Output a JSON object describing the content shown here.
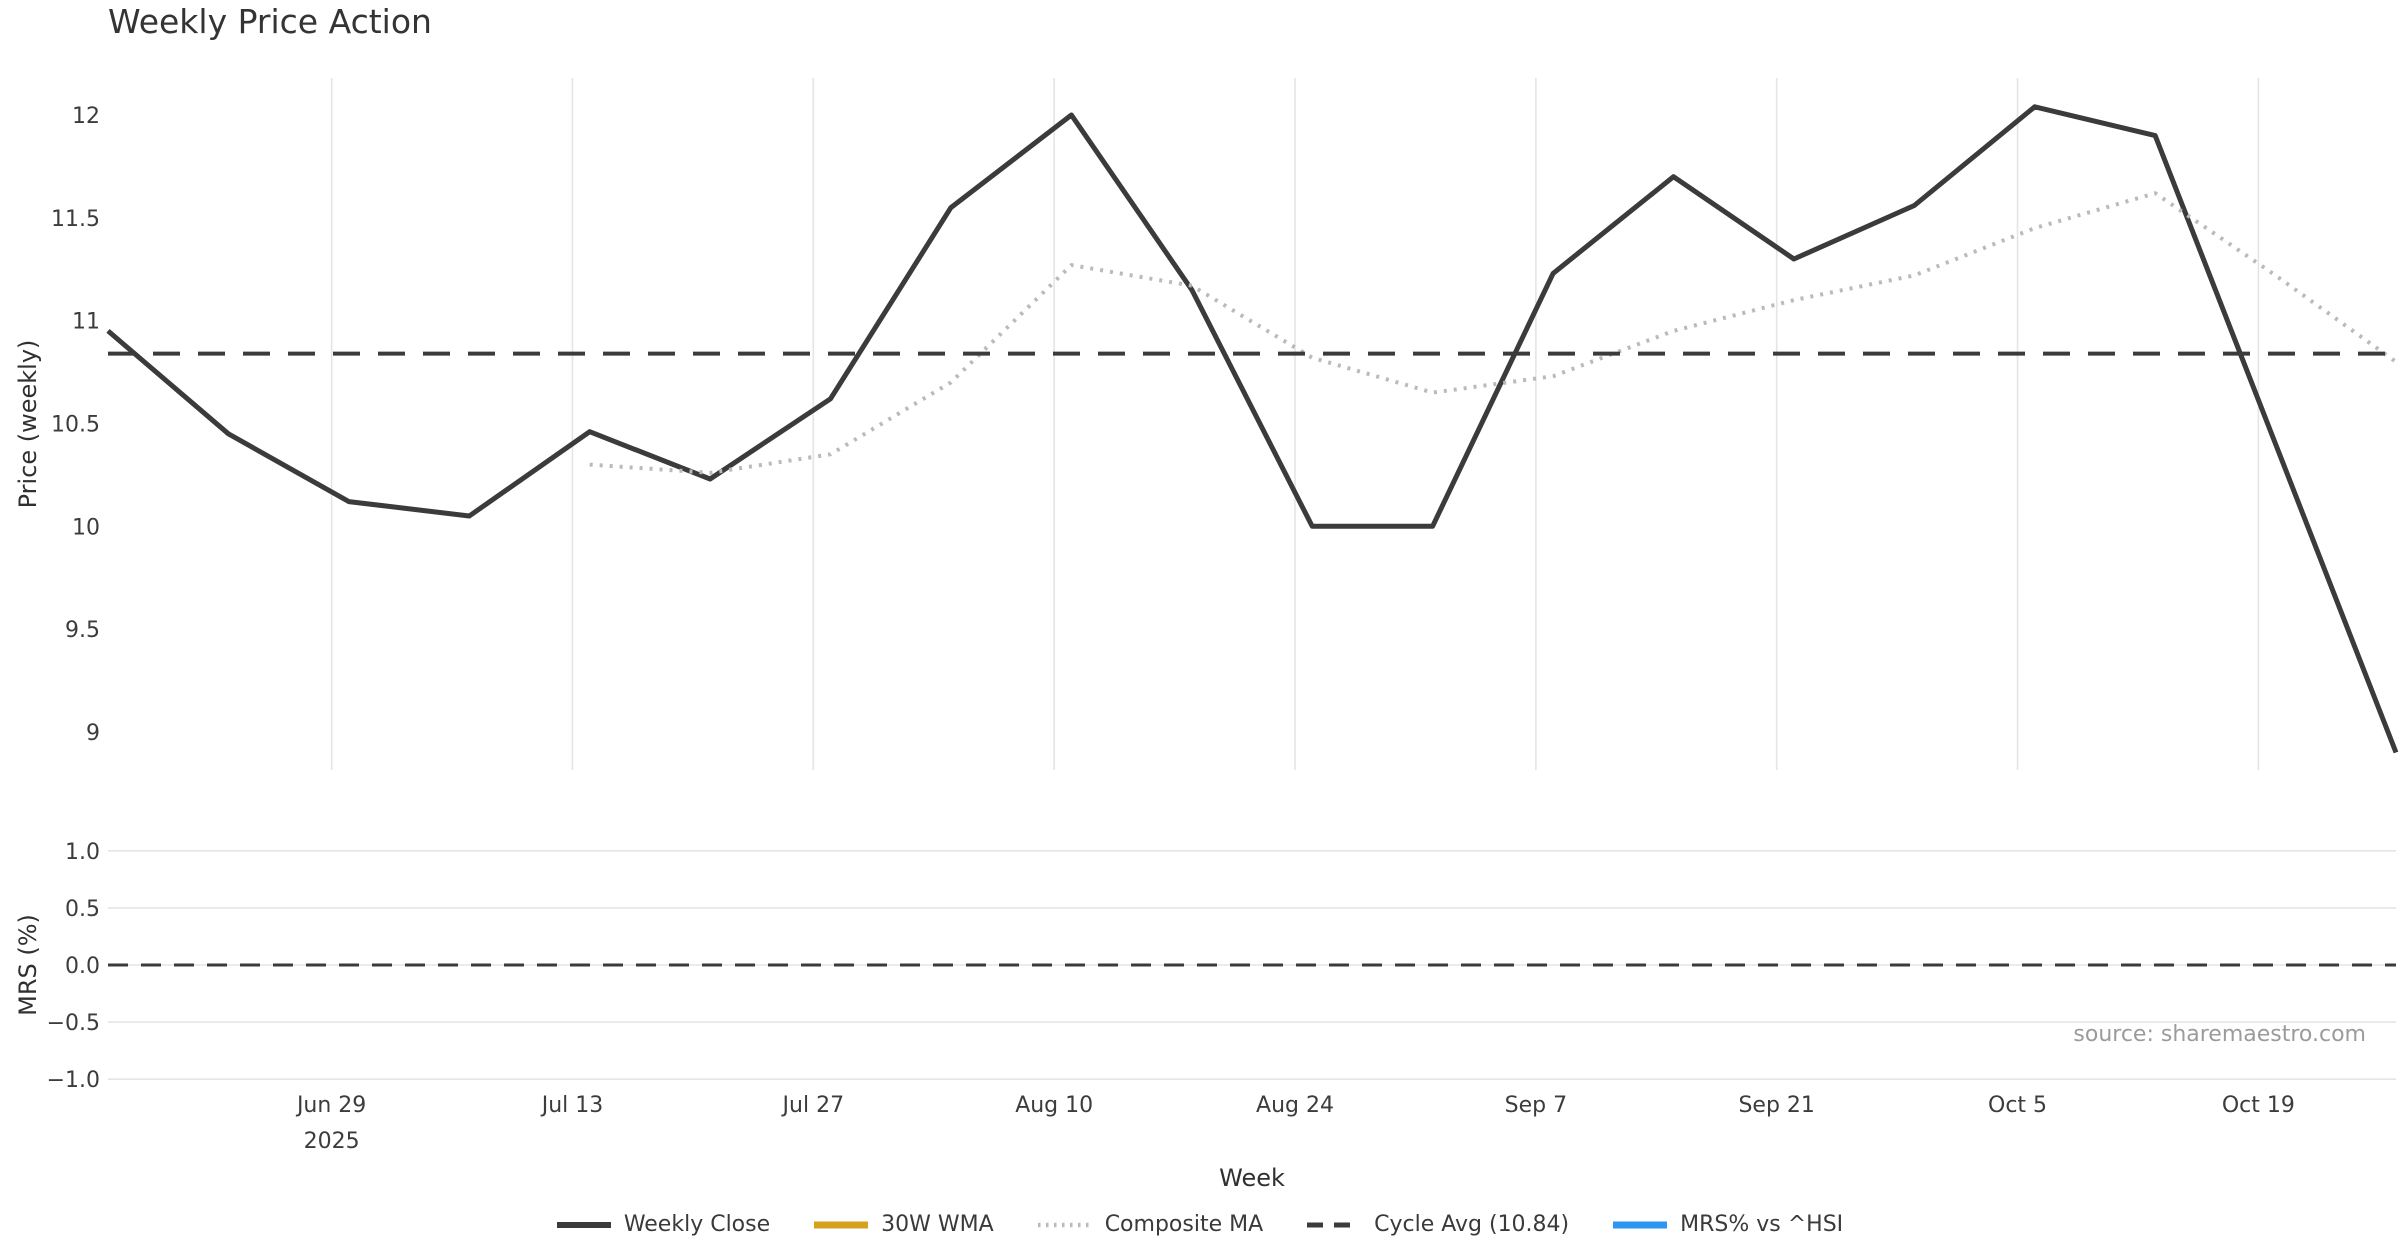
{
  "title": "Weekly Price Action",
  "source_note": "source: sharemaestro.com",
  "colors": {
    "weekly_close": "#3b3b3b",
    "wma_30w": "#d6a21e",
    "composite_ma": "#bababa",
    "cycle_avg": "#3b3b3b",
    "mrs_line": "#2e96f0",
    "grid": "#e5e5e9",
    "tick_text": "#3c3c3c"
  },
  "chart_data": {
    "type": "line",
    "title": "Weekly Price Action",
    "xlabel": "Week",
    "x_unit": "weekly points, days offset along x axis",
    "xlim_days": [
      0,
      133
    ],
    "x_days": [
      0,
      7,
      14,
      21,
      28,
      35,
      42,
      49,
      56,
      63,
      70,
      77,
      84,
      91,
      98,
      105,
      112,
      119,
      126,
      133
    ],
    "x_ticks": [
      {
        "day": 13,
        "label": "Jun 29",
        "sublabel": "2025"
      },
      {
        "day": 27,
        "label": "Jul 13"
      },
      {
        "day": 41,
        "label": "Jul 27"
      },
      {
        "day": 55,
        "label": "Aug 10"
      },
      {
        "day": 69,
        "label": "Aug 24"
      },
      {
        "day": 83,
        "label": "Sep 7"
      },
      {
        "day": 97,
        "label": "Sep 21"
      },
      {
        "day": 111,
        "label": "Oct 5"
      },
      {
        "day": 125,
        "label": "Oct 19"
      }
    ],
    "panels": [
      {
        "id": "price",
        "ylabel": "Price (weekly)",
        "ylim": [
          8.815,
          12.18
        ],
        "grid": "x",
        "yticks": [
          {
            "value": 9,
            "label": "9"
          },
          {
            "value": 9.5,
            "label": "9.5"
          },
          {
            "value": 10,
            "label": "10"
          },
          {
            "value": 10.5,
            "label": "10.5"
          },
          {
            "value": 11,
            "label": "11"
          },
          {
            "value": 11.5,
            "label": "11.5"
          },
          {
            "value": 12,
            "label": "12"
          }
        ],
        "series": [
          {
            "name": "Weekly Close",
            "style": "solid",
            "color_key": "weekly_close",
            "width": 5,
            "values": [
              10.95,
              10.45,
              10.12,
              10.05,
              10.46,
              10.23,
              10.62,
              11.55,
              12.0,
              11.15,
              10.0,
              10.0,
              11.23,
              11.7,
              11.3,
              11.56,
              12.04,
              11.9,
              10.4,
              8.9
            ]
          },
          {
            "name": "30W WMA",
            "style": "solid",
            "color_key": "wma_30w",
            "width": 5,
            "values": []
          },
          {
            "name": "Composite MA",
            "style": "dotted",
            "color_key": "composite_ma",
            "width": 4,
            "values": [
              null,
              null,
              null,
              null,
              10.3,
              10.26,
              10.35,
              10.7,
              11.27,
              11.17,
              10.82,
              10.65,
              10.73,
              10.95,
              11.1,
              11.22,
              11.45,
              11.62,
              11.22,
              10.8
            ]
          },
          {
            "name": "Cycle Avg (10.84)",
            "style": "dashed",
            "color_key": "cycle_avg",
            "width": 4,
            "hline": 10.84
          }
        ]
      },
      {
        "id": "mrs",
        "ylabel": "MRS (%)",
        "ylim": [
          -1.2,
          1.2
        ],
        "grid": "y",
        "yticks": [
          {
            "value": 1.0,
            "label": "1.0"
          },
          {
            "value": 0.5,
            "label": "0.5"
          },
          {
            "value": 0.0,
            "label": "0.0"
          },
          {
            "value": -0.5,
            "label": "−0.5"
          },
          {
            "value": -1.0,
            "label": "−1.0"
          }
        ],
        "series": [
          {
            "name": "MRS% vs ^HSI",
            "style": "solid",
            "color_key": "mrs_line",
            "width": 5,
            "values": []
          },
          {
            "name": "Zero Line",
            "style": "dashed-small",
            "color_key": "cycle_avg",
            "width": 3,
            "hline": 0.0
          }
        ]
      }
    ]
  },
  "legend": {
    "items": [
      {
        "label": "Weekly Close",
        "style": "solid",
        "color_key": "weekly_close",
        "width": 6
      },
      {
        "label": "30W WMA",
        "style": "solid",
        "color_key": "wma_30w",
        "width": 7
      },
      {
        "label": "Composite MA",
        "style": "dotted",
        "color_key": "composite_ma",
        "width": 4.5
      },
      {
        "label": "Cycle Avg (10.84)",
        "style": "dashed",
        "color_key": "cycle_avg",
        "width": 5
      },
      {
        "label": "MRS% vs ^HSI",
        "style": "solid",
        "color_key": "mrs_line",
        "width": 7
      }
    ]
  }
}
